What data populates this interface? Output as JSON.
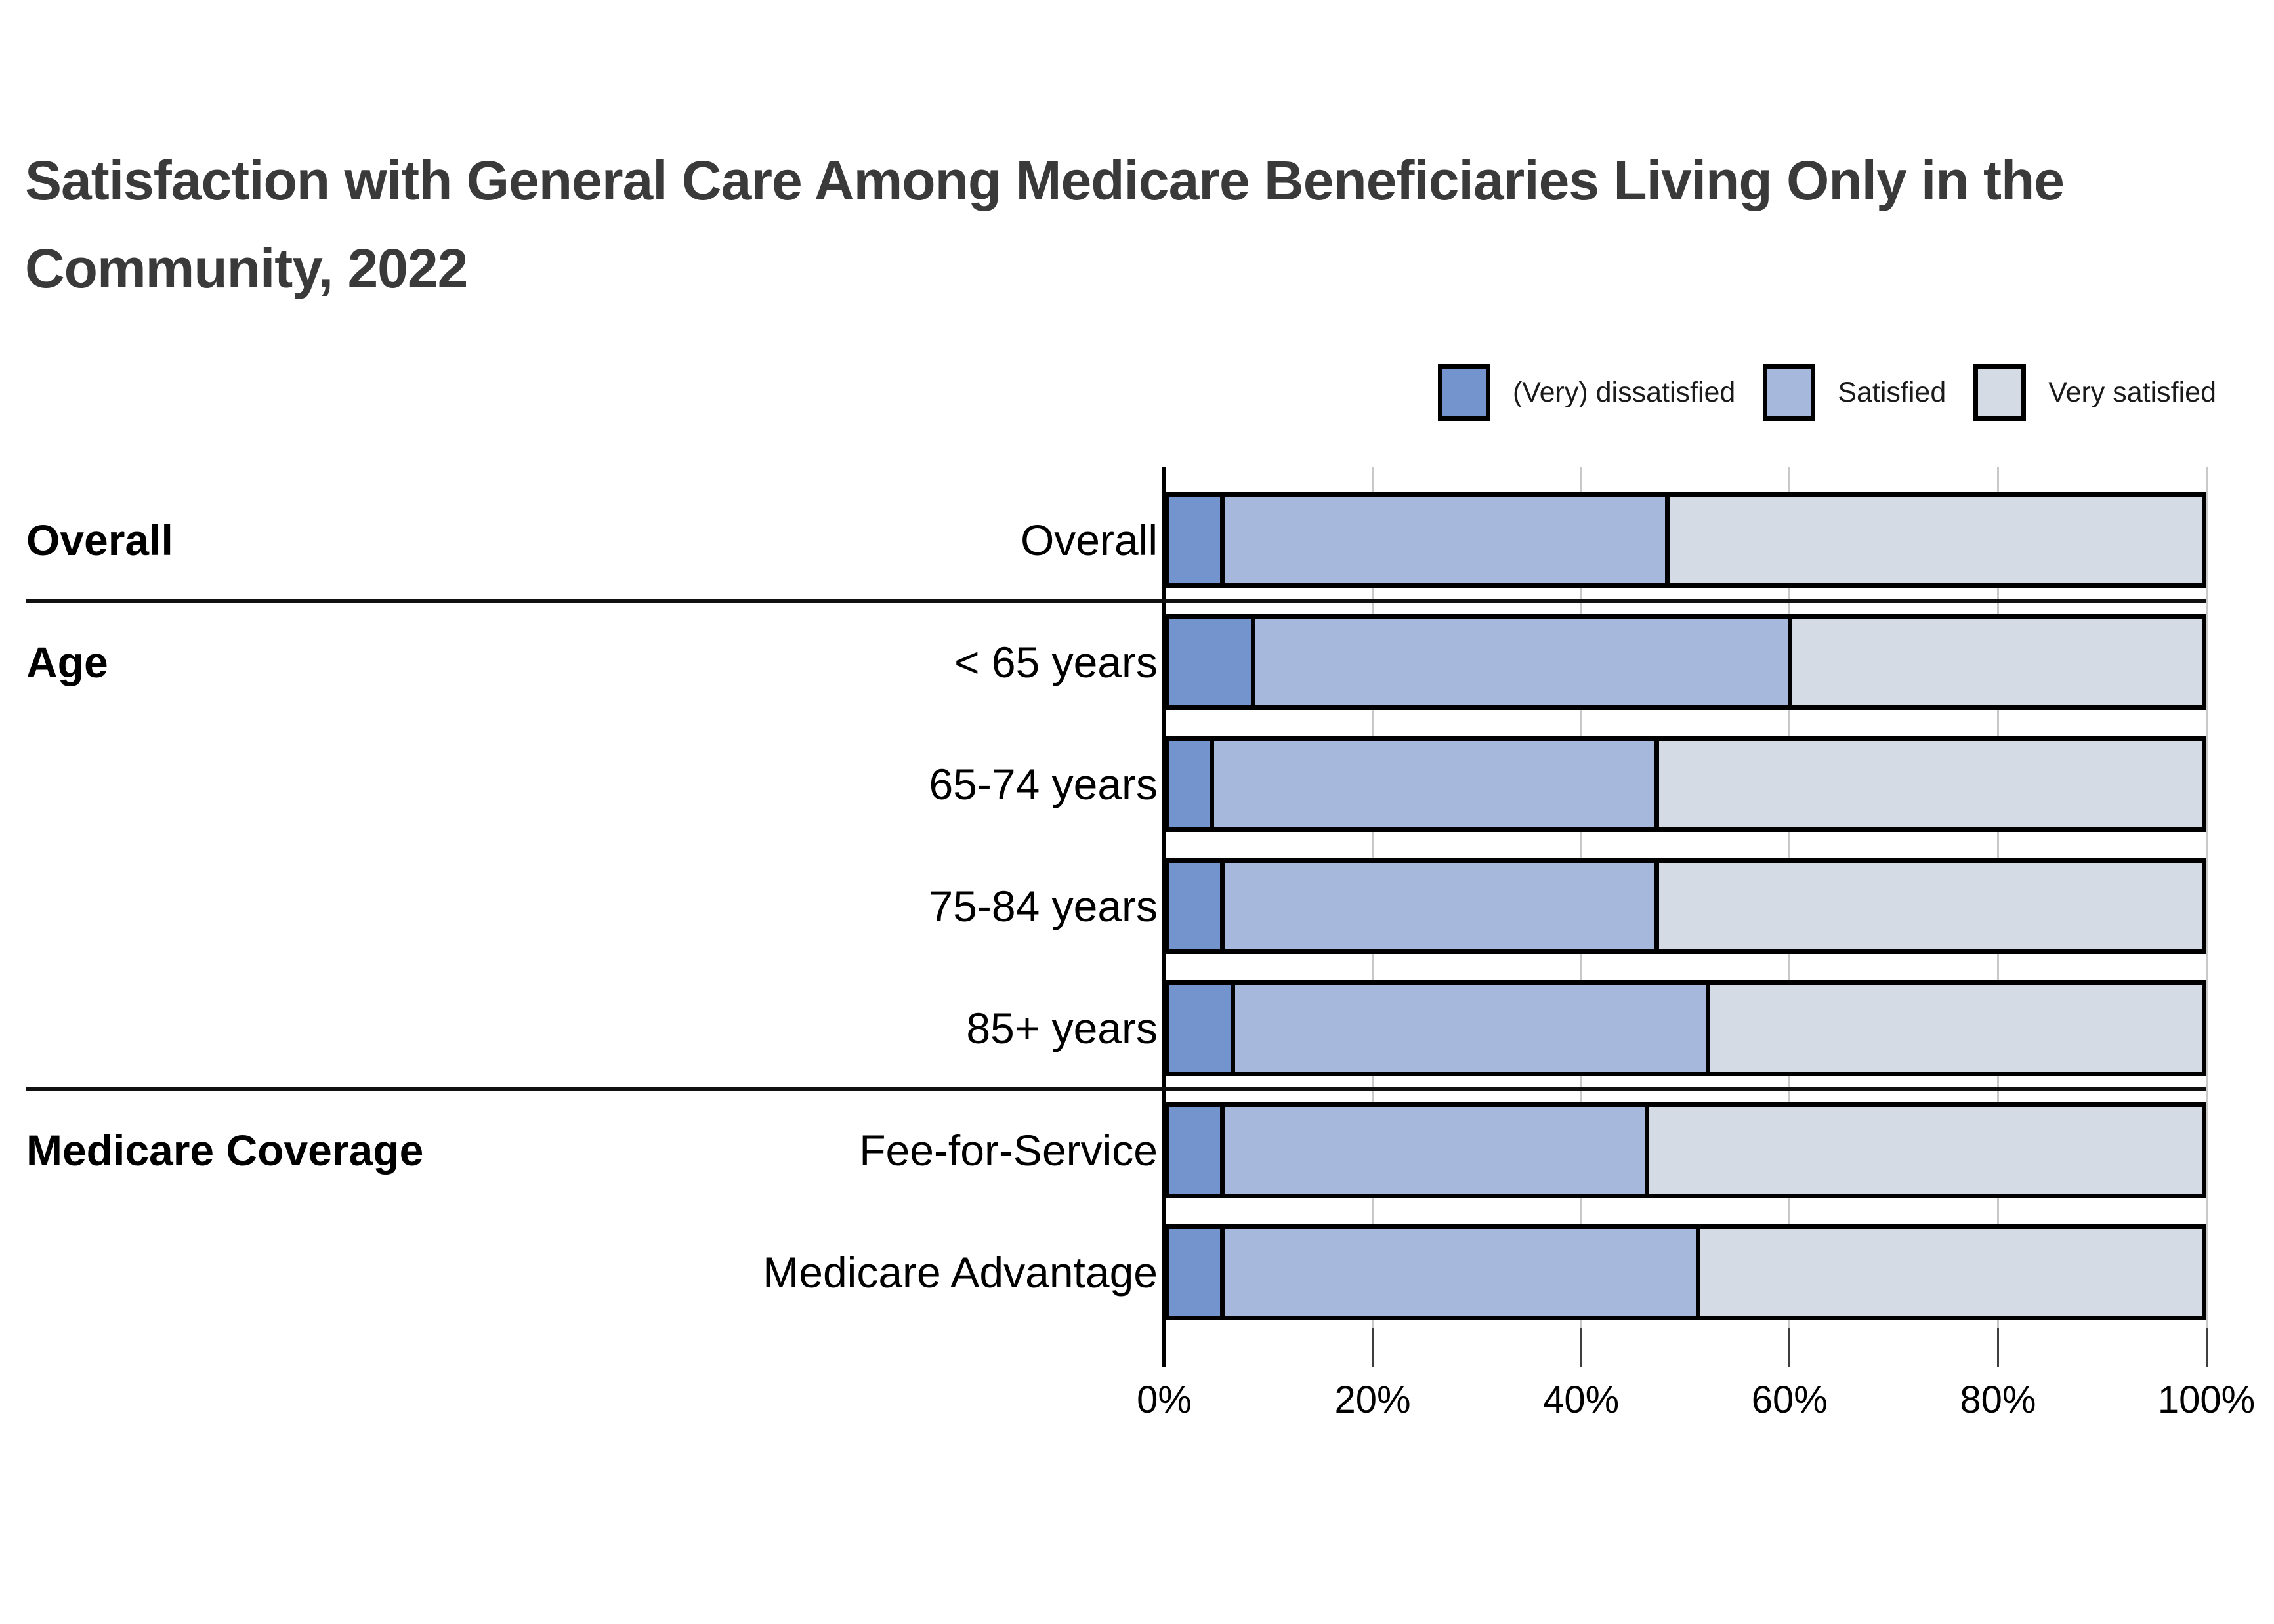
{
  "page": {
    "background": "#ffffff"
  },
  "title": {
    "text": "Satisfaction with General Care Among Medicare Beneficiaries Living Only in the Community, 2022",
    "lines": [
      "Satisfaction with General Care Among Medicare Beneficiaries Living Only in the",
      "Community, 2022"
    ],
    "color": "#3a3a3a"
  },
  "legend": {
    "items": [
      {
        "label": "(Very) dissatisfied",
        "color": "#7494CE"
      },
      {
        "label": "Satisfied",
        "color": "#A6B9DC"
      },
      {
        "label": "Very satisfied",
        "color": "#D5DBE4"
      }
    ]
  },
  "chart_data": {
    "type": "bar",
    "orientation": "horizontal",
    "stacked": true,
    "title": "Satisfaction with General Care Among Medicare Beneficiaries Living Only in the Community, 2022",
    "xlabel": "",
    "ylabel": "",
    "xlim": [
      0,
      100
    ],
    "x_tick_labels": [
      "0%",
      "20%",
      "40%",
      "60%",
      "80%",
      "100%"
    ],
    "grid": true,
    "legend_position": "top-right",
    "series_names": [
      "(Very) dissatisfied",
      "Satisfied",
      "Very satisfied"
    ],
    "series_colors": [
      "#7494CE",
      "#A6B9DC",
      "#D5DBE4"
    ],
    "groups": [
      {
        "label": "Overall",
        "rows": [
          {
            "label": "Overall",
            "values": [
              5,
              43,
              52
            ]
          }
        ]
      },
      {
        "label": "Age",
        "rows": [
          {
            "label": "< 65 years",
            "values": [
              8,
              52,
              40
            ]
          },
          {
            "label": "65-74 years",
            "values": [
              4,
              43,
              53
            ]
          },
          {
            "label": "75-84 years",
            "values": [
              5,
              42,
              53
            ]
          },
          {
            "label": "85+ years",
            "values": [
              6,
              46,
              48
            ]
          }
        ]
      },
      {
        "label": "Medicare Coverage",
        "rows": [
          {
            "label": "Fee-for-Service",
            "values": [
              5,
              41,
              54
            ]
          },
          {
            "label": "Medicare Advantage",
            "values": [
              5,
              46,
              49
            ]
          }
        ]
      }
    ]
  }
}
